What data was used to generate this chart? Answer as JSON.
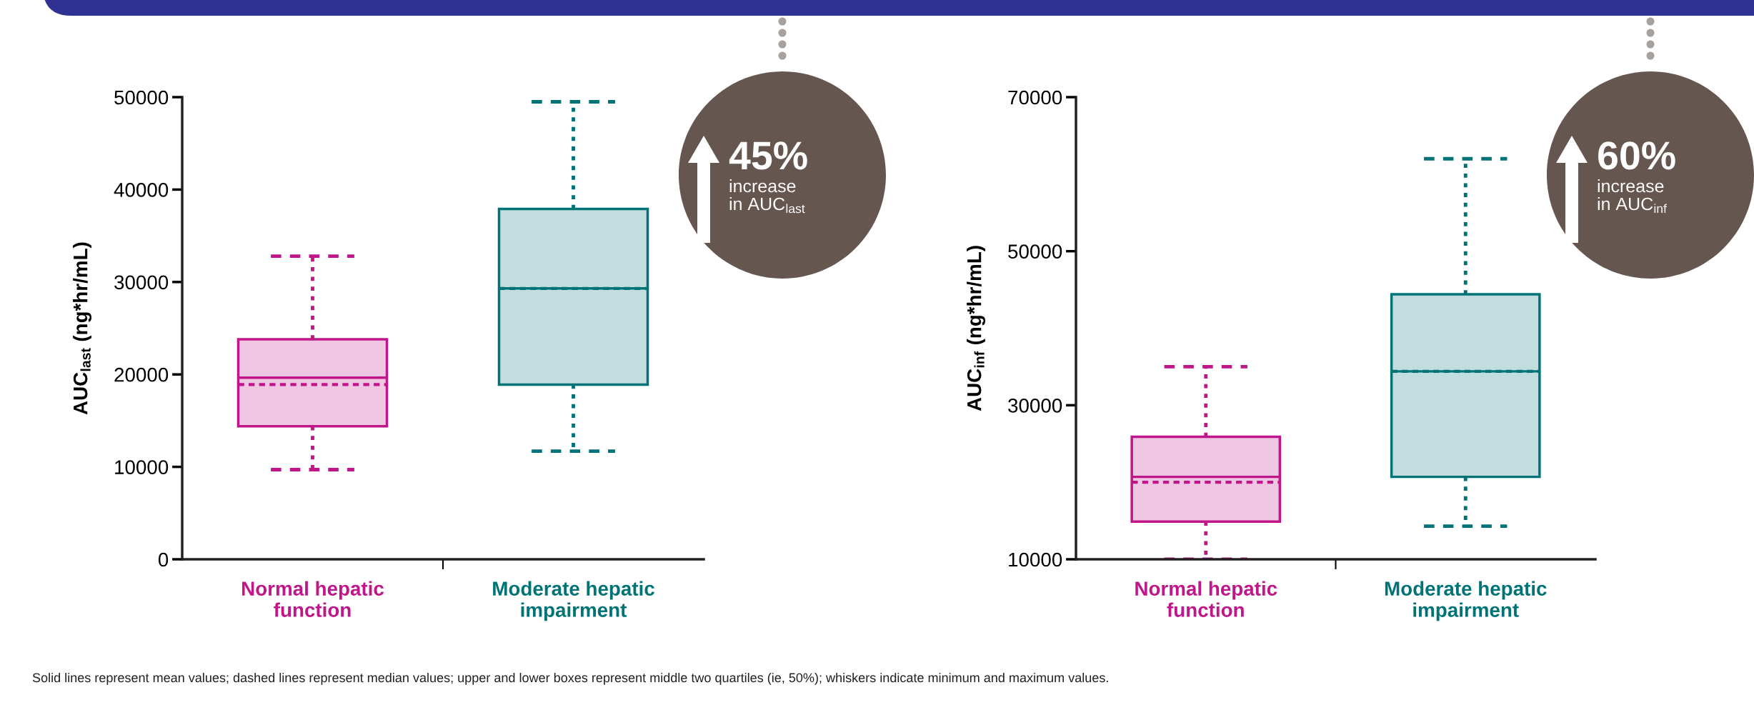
{
  "chart_data": [
    {
      "type": "box",
      "categories": [
        "Normal hepatic\nfunction",
        "Moderate hepatic\nimpairment"
      ],
      "colors": [
        "#c0168a",
        "#007377"
      ],
      "ylabel": "AUC$_{last}$ (ng*hr/mL)",
      "ylim": [
        0,
        50000
      ],
      "yticks": [
        0,
        10000,
        20000,
        30000,
        40000,
        50000
      ],
      "grid": false,
      "boxes": [
        {
          "low": 9700,
          "q1": 14400,
          "median": 18900,
          "q3": 23800,
          "high": 32800,
          "mean": 19650
        },
        {
          "low": 11700,
          "q1": 18900,
          "median": 29300,
          "q3": 37900,
          "high": 49500,
          "mean": 29300
        }
      ],
      "annotations": [
        "45%",
        "increase\nin AUC$_{last}$",
        "Solid lines represent mean values; dashed lines represent median values; upper and lower boxes represent middle two quartiles (ie, 50%); whiskers indicate minimum and maximum values."
      ]
    },
    {
      "type": "box",
      "categories": [
        "Normal hepatic\nfunction",
        "Moderate hepatic\nimpairment"
      ],
      "colors": [
        "#c0168a",
        "#007377"
      ],
      "ylabel": "AUC$_{inf}$ (ng*hr/mL)",
      "ylim": [
        10000,
        70000
      ],
      "yticks": [
        10000,
        30000,
        50000,
        70000
      ],
      "grid": false,
      "boxes": [
        {
          "low": 10000,
          "q1": 14900,
          "median": 20000,
          "q3": 25900,
          "high": 35000,
          "mean": 20700
        },
        {
          "low": 14300,
          "q1": 20700,
          "median": 34400,
          "q3": 44400,
          "high": 62000,
          "mean": 34400
        }
      ],
      "annotations": [
        "60%",
        "increase\nin AUC$_{inf}$"
      ]
    }
  ]
}
